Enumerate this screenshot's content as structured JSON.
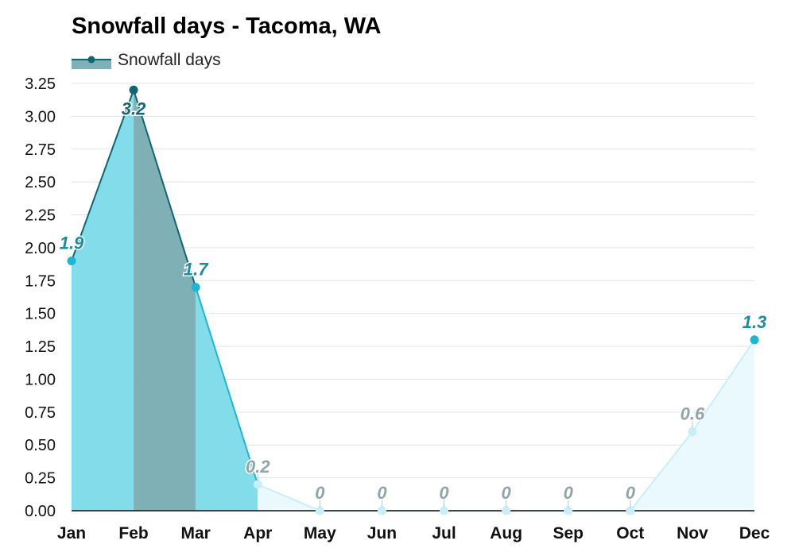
{
  "chart_data": {
    "type": "area",
    "title": "Snowfall days - Tacoma, WA",
    "xlabel": "",
    "ylabel": "",
    "categories": [
      "Jan",
      "Feb",
      "Mar",
      "Apr",
      "May",
      "Jun",
      "Jul",
      "Aug",
      "Sep",
      "Oct",
      "Nov",
      "Dec"
    ],
    "series": [
      {
        "name": "Snowfall days",
        "values": [
          1.9,
          3.2,
          1.7,
          0.2,
          0,
          0,
          0,
          0,
          0,
          0,
          0.6,
          1.3
        ],
        "value_labels": [
          "1.9",
          "3.2",
          "1.7",
          "0.2",
          "0",
          "0",
          "0",
          "0",
          "0",
          "0",
          "0.6",
          "1.3"
        ]
      }
    ],
    "ylim": [
      0,
      3.25
    ],
    "yticks": [
      0,
      0.25,
      0.5,
      0.75,
      1.0,
      1.25,
      1.5,
      1.75,
      2.0,
      2.25,
      2.5,
      2.75,
      3.0,
      3.25
    ],
    "ytick_labels": [
      "0.00",
      "0.25",
      "0.50",
      "0.75",
      "1.00",
      "1.25",
      "1.50",
      "1.75",
      "2.00",
      "2.25",
      "2.50",
      "2.75",
      "3.00",
      "3.25"
    ],
    "grid": true,
    "legend": "top-left",
    "colors": {
      "high": "#0e6673",
      "medium": "#1bb7d0",
      "low": "#c8eef8",
      "high_fill": "#7fb0b6",
      "medium_fill": "#82dcea",
      "low_fill": "#eaf9fd",
      "label_high": "#156772",
      "label_medium": "#1b8da1",
      "label_low": "#8fa5aa",
      "grid": "#e3e3e3",
      "axis": "#111111"
    }
  }
}
